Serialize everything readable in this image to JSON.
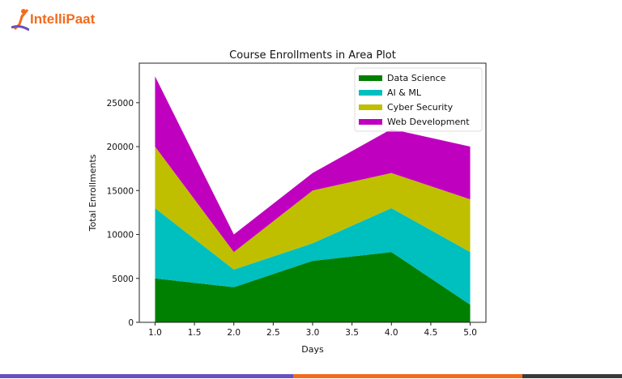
{
  "brand": {
    "logo_text": "IntelliPaat",
    "colors": {
      "purple": "#6a4fbf",
      "orange": "#f26b1d",
      "dark": "#3a3a3a"
    }
  },
  "chart_data": {
    "type": "area",
    "stacked": true,
    "title": "Course Enrollments in Area Plot",
    "xlabel": "Days",
    "ylabel": "Total Enrollments",
    "x": [
      1,
      2,
      3,
      4,
      5
    ],
    "xlim": [
      0.8,
      5.2
    ],
    "ylim": [
      0,
      29500
    ],
    "xticks": [
      "1.0",
      "1.5",
      "2.0",
      "2.5",
      "3.0",
      "3.5",
      "4.0",
      "4.5",
      "5.0"
    ],
    "yticks": [
      "0",
      "5000",
      "10000",
      "15000",
      "20000",
      "25000"
    ],
    "grid": false,
    "legend_position": "top-right",
    "series": [
      {
        "name": "Data Science",
        "values": [
          5000,
          4000,
          7000,
          8000,
          2000
        ],
        "color": "#008000"
      },
      {
        "name": "AI & ML",
        "values": [
          8000,
          2000,
          2000,
          5000,
          6000
        ],
        "color": "#00bfbf"
      },
      {
        "name": "Cyber Security",
        "values": [
          7000,
          2000,
          6000,
          4000,
          6000
        ],
        "color": "#bfbf00"
      },
      {
        "name": "Web Development",
        "values": [
          8000,
          2000,
          2000,
          5000,
          6000
        ],
        "color": "#bf00bf"
      }
    ]
  }
}
